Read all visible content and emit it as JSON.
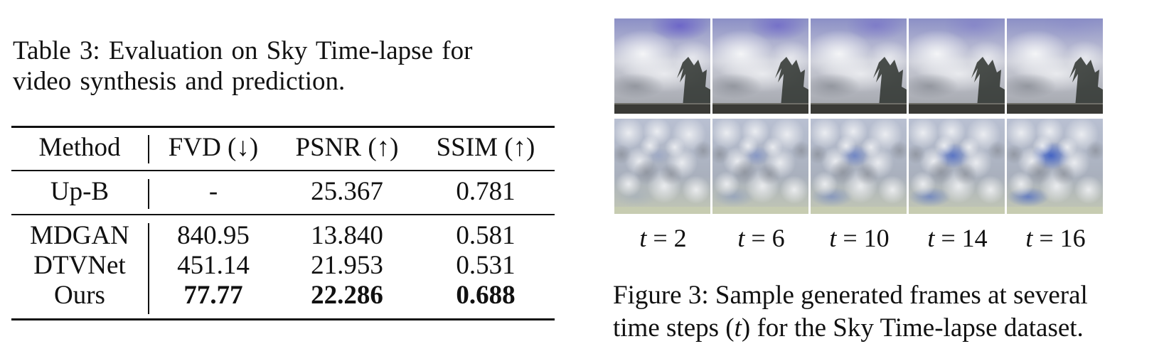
{
  "table": {
    "caption_line1": "Table 3:  Evaluation on Sky Time-lapse for",
    "caption_line2": "video synthesis and prediction.",
    "headers": {
      "method": "Method",
      "fvd": "FVD (↓)",
      "psnr": "PSNR (↑)",
      "ssim": "SSIM (↑)"
    },
    "baseline": {
      "method": "Up-B",
      "fvd": "-",
      "psnr": "25.367",
      "ssim": "0.781"
    },
    "rows": [
      {
        "method": "MDGAN",
        "fvd": "840.95",
        "psnr": "13.840",
        "ssim": "0.581"
      },
      {
        "method": "DTVNet",
        "fvd": "451.14",
        "psnr": "21.953",
        "ssim": "0.531"
      },
      {
        "method": "Ours",
        "fvd": "77.77",
        "psnr": "22.286",
        "ssim": "0.688"
      }
    ]
  },
  "figure": {
    "time_labels": [
      {
        "var": "t",
        "eq": " = 2"
      },
      {
        "var": "t",
        "eq": " = 6"
      },
      {
        "var": "t",
        "eq": " = 10"
      },
      {
        "var": "t",
        "eq": " = 14"
      },
      {
        "var": "t",
        "eq": " = 16"
      }
    ],
    "caption_line1": "Figure 3: Sample generated frames at several",
    "caption_line2_pre": "time steps (",
    "caption_line2_var": "t",
    "caption_line2_post": ") for the Sky Time-lapse dataset.",
    "colors": {
      "sky_blue": "#5a72c4",
      "cloud_white": "#e9eaee",
      "cloud_gray": "#9a9ea6",
      "tree_dark": "#2e332e"
    }
  }
}
